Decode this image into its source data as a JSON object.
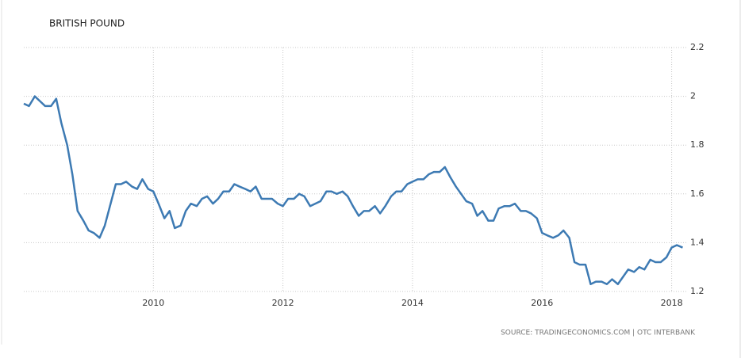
{
  "chart_data": {
    "type": "line",
    "title": "BRITISH POUND",
    "source": "SOURCE: TRADINGECONOMICS.COM | OTC INTERBANK",
    "color": "#3d7ab3",
    "grid": true,
    "xlim": [
      2008,
      2018.25
    ],
    "xticks": [
      2010,
      2012,
      2014,
      2016,
      2018
    ],
    "ylim": [
      1.2,
      2.2
    ],
    "yticks": [
      2.2,
      2,
      1.8,
      1.6,
      1.4,
      1.2
    ],
    "x": [
      2008,
      2008.08,
      2008.17,
      2008.25,
      2008.33,
      2008.42,
      2008.5,
      2008.58,
      2008.67,
      2008.75,
      2008.83,
      2008.92,
      2009,
      2009.08,
      2009.17,
      2009.25,
      2009.33,
      2009.42,
      2009.5,
      2009.58,
      2009.67,
      2009.75,
      2009.83,
      2009.92,
      2010,
      2010.08,
      2010.17,
      2010.25,
      2010.33,
      2010.42,
      2010.5,
      2010.58,
      2010.67,
      2010.75,
      2010.83,
      2010.92,
      2011,
      2011.08,
      2011.17,
      2011.25,
      2011.33,
      2011.42,
      2011.5,
      2011.58,
      2011.67,
      2011.75,
      2011.83,
      2011.92,
      2012,
      2012.08,
      2012.17,
      2012.25,
      2012.33,
      2012.42,
      2012.5,
      2012.58,
      2012.67,
      2012.75,
      2012.83,
      2012.92,
      2013,
      2013.08,
      2013.17,
      2013.25,
      2013.33,
      2013.42,
      2013.5,
      2013.58,
      2013.67,
      2013.75,
      2013.83,
      2013.92,
      2014,
      2014.08,
      2014.17,
      2014.25,
      2014.33,
      2014.42,
      2014.5,
      2014.58,
      2014.67,
      2014.75,
      2014.83,
      2014.92,
      2015,
      2015.08,
      2015.17,
      2015.25,
      2015.33,
      2015.42,
      2015.5,
      2015.58,
      2015.67,
      2015.75,
      2015.83,
      2015.92,
      2016,
      2016.08,
      2016.17,
      2016.25,
      2016.33,
      2016.42,
      2016.5,
      2016.58,
      2016.67,
      2016.75,
      2016.83,
      2016.92,
      2017,
      2017.08,
      2017.17,
      2017.25,
      2017.33,
      2017.42,
      2017.5,
      2017.58,
      2017.67,
      2017.75,
      2017.83,
      2017.92,
      2018,
      2018.08,
      2018.17
    ],
    "values": [
      1.97,
      1.96,
      2.0,
      1.98,
      1.96,
      1.96,
      1.99,
      1.89,
      1.8,
      1.68,
      1.53,
      1.49,
      1.45,
      1.44,
      1.42,
      1.47,
      1.55,
      1.64,
      1.64,
      1.65,
      1.63,
      1.62,
      1.66,
      1.62,
      1.61,
      1.56,
      1.5,
      1.53,
      1.46,
      1.47,
      1.53,
      1.56,
      1.55,
      1.58,
      1.59,
      1.56,
      1.58,
      1.61,
      1.61,
      1.64,
      1.63,
      1.62,
      1.61,
      1.63,
      1.58,
      1.58,
      1.58,
      1.56,
      1.55,
      1.58,
      1.58,
      1.6,
      1.59,
      1.55,
      1.56,
      1.57,
      1.61,
      1.61,
      1.6,
      1.61,
      1.59,
      1.55,
      1.51,
      1.53,
      1.53,
      1.55,
      1.52,
      1.55,
      1.59,
      1.61,
      1.61,
      1.64,
      1.65,
      1.66,
      1.66,
      1.68,
      1.69,
      1.69,
      1.71,
      1.67,
      1.63,
      1.6,
      1.57,
      1.56,
      1.51,
      1.53,
      1.49,
      1.49,
      1.54,
      1.55,
      1.55,
      1.56,
      1.53,
      1.53,
      1.52,
      1.5,
      1.44,
      1.43,
      1.42,
      1.43,
      1.45,
      1.42,
      1.32,
      1.31,
      1.31,
      1.23,
      1.24,
      1.24,
      1.23,
      1.25,
      1.23,
      1.26,
      1.29,
      1.28,
      1.3,
      1.29,
      1.33,
      1.32,
      1.32,
      1.34,
      1.38,
      1.39,
      1.38
    ]
  }
}
